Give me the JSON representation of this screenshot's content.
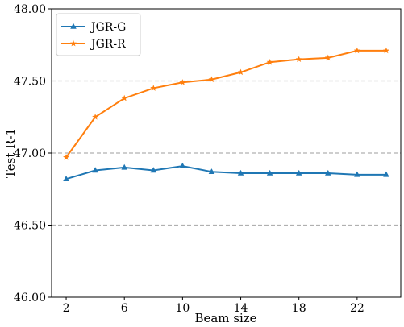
{
  "chart_data": {
    "type": "line",
    "xlabel": "Beam size",
    "ylabel": "Test R-1",
    "xlim": [
      1,
      25
    ],
    "ylim": [
      46.0,
      48.0
    ],
    "x_ticks": [
      2,
      6,
      10,
      14,
      18,
      22
    ],
    "x_tick_labels": [
      "2",
      "6",
      "10",
      "14",
      "18",
      "22"
    ],
    "y_ticks": [
      46.0,
      46.5,
      47.0,
      47.5,
      48.0
    ],
    "y_tick_labels": [
      "46.00",
      "46.50",
      "47.00",
      "47.50",
      "48.00"
    ],
    "grid": "horizontal dashed at 46.50, 47.00, 47.50",
    "legend_position": "top-left",
    "x": [
      2,
      4,
      6,
      8,
      10,
      12,
      14,
      16,
      18,
      20,
      22,
      24
    ],
    "series": [
      {
        "name": "JGR-G",
        "color": "#1f77b4",
        "marker": "triangle",
        "values": [
          46.82,
          46.88,
          46.9,
          46.88,
          46.91,
          46.87,
          46.86,
          46.86,
          46.86,
          46.86,
          46.85,
          46.85
        ]
      },
      {
        "name": "JGR-R",
        "color": "#ff7f0e",
        "marker": "star",
        "values": [
          46.97,
          47.25,
          47.38,
          47.45,
          47.49,
          47.51,
          47.56,
          47.63,
          47.65,
          47.66,
          47.71,
          47.71
        ]
      }
    ]
  }
}
